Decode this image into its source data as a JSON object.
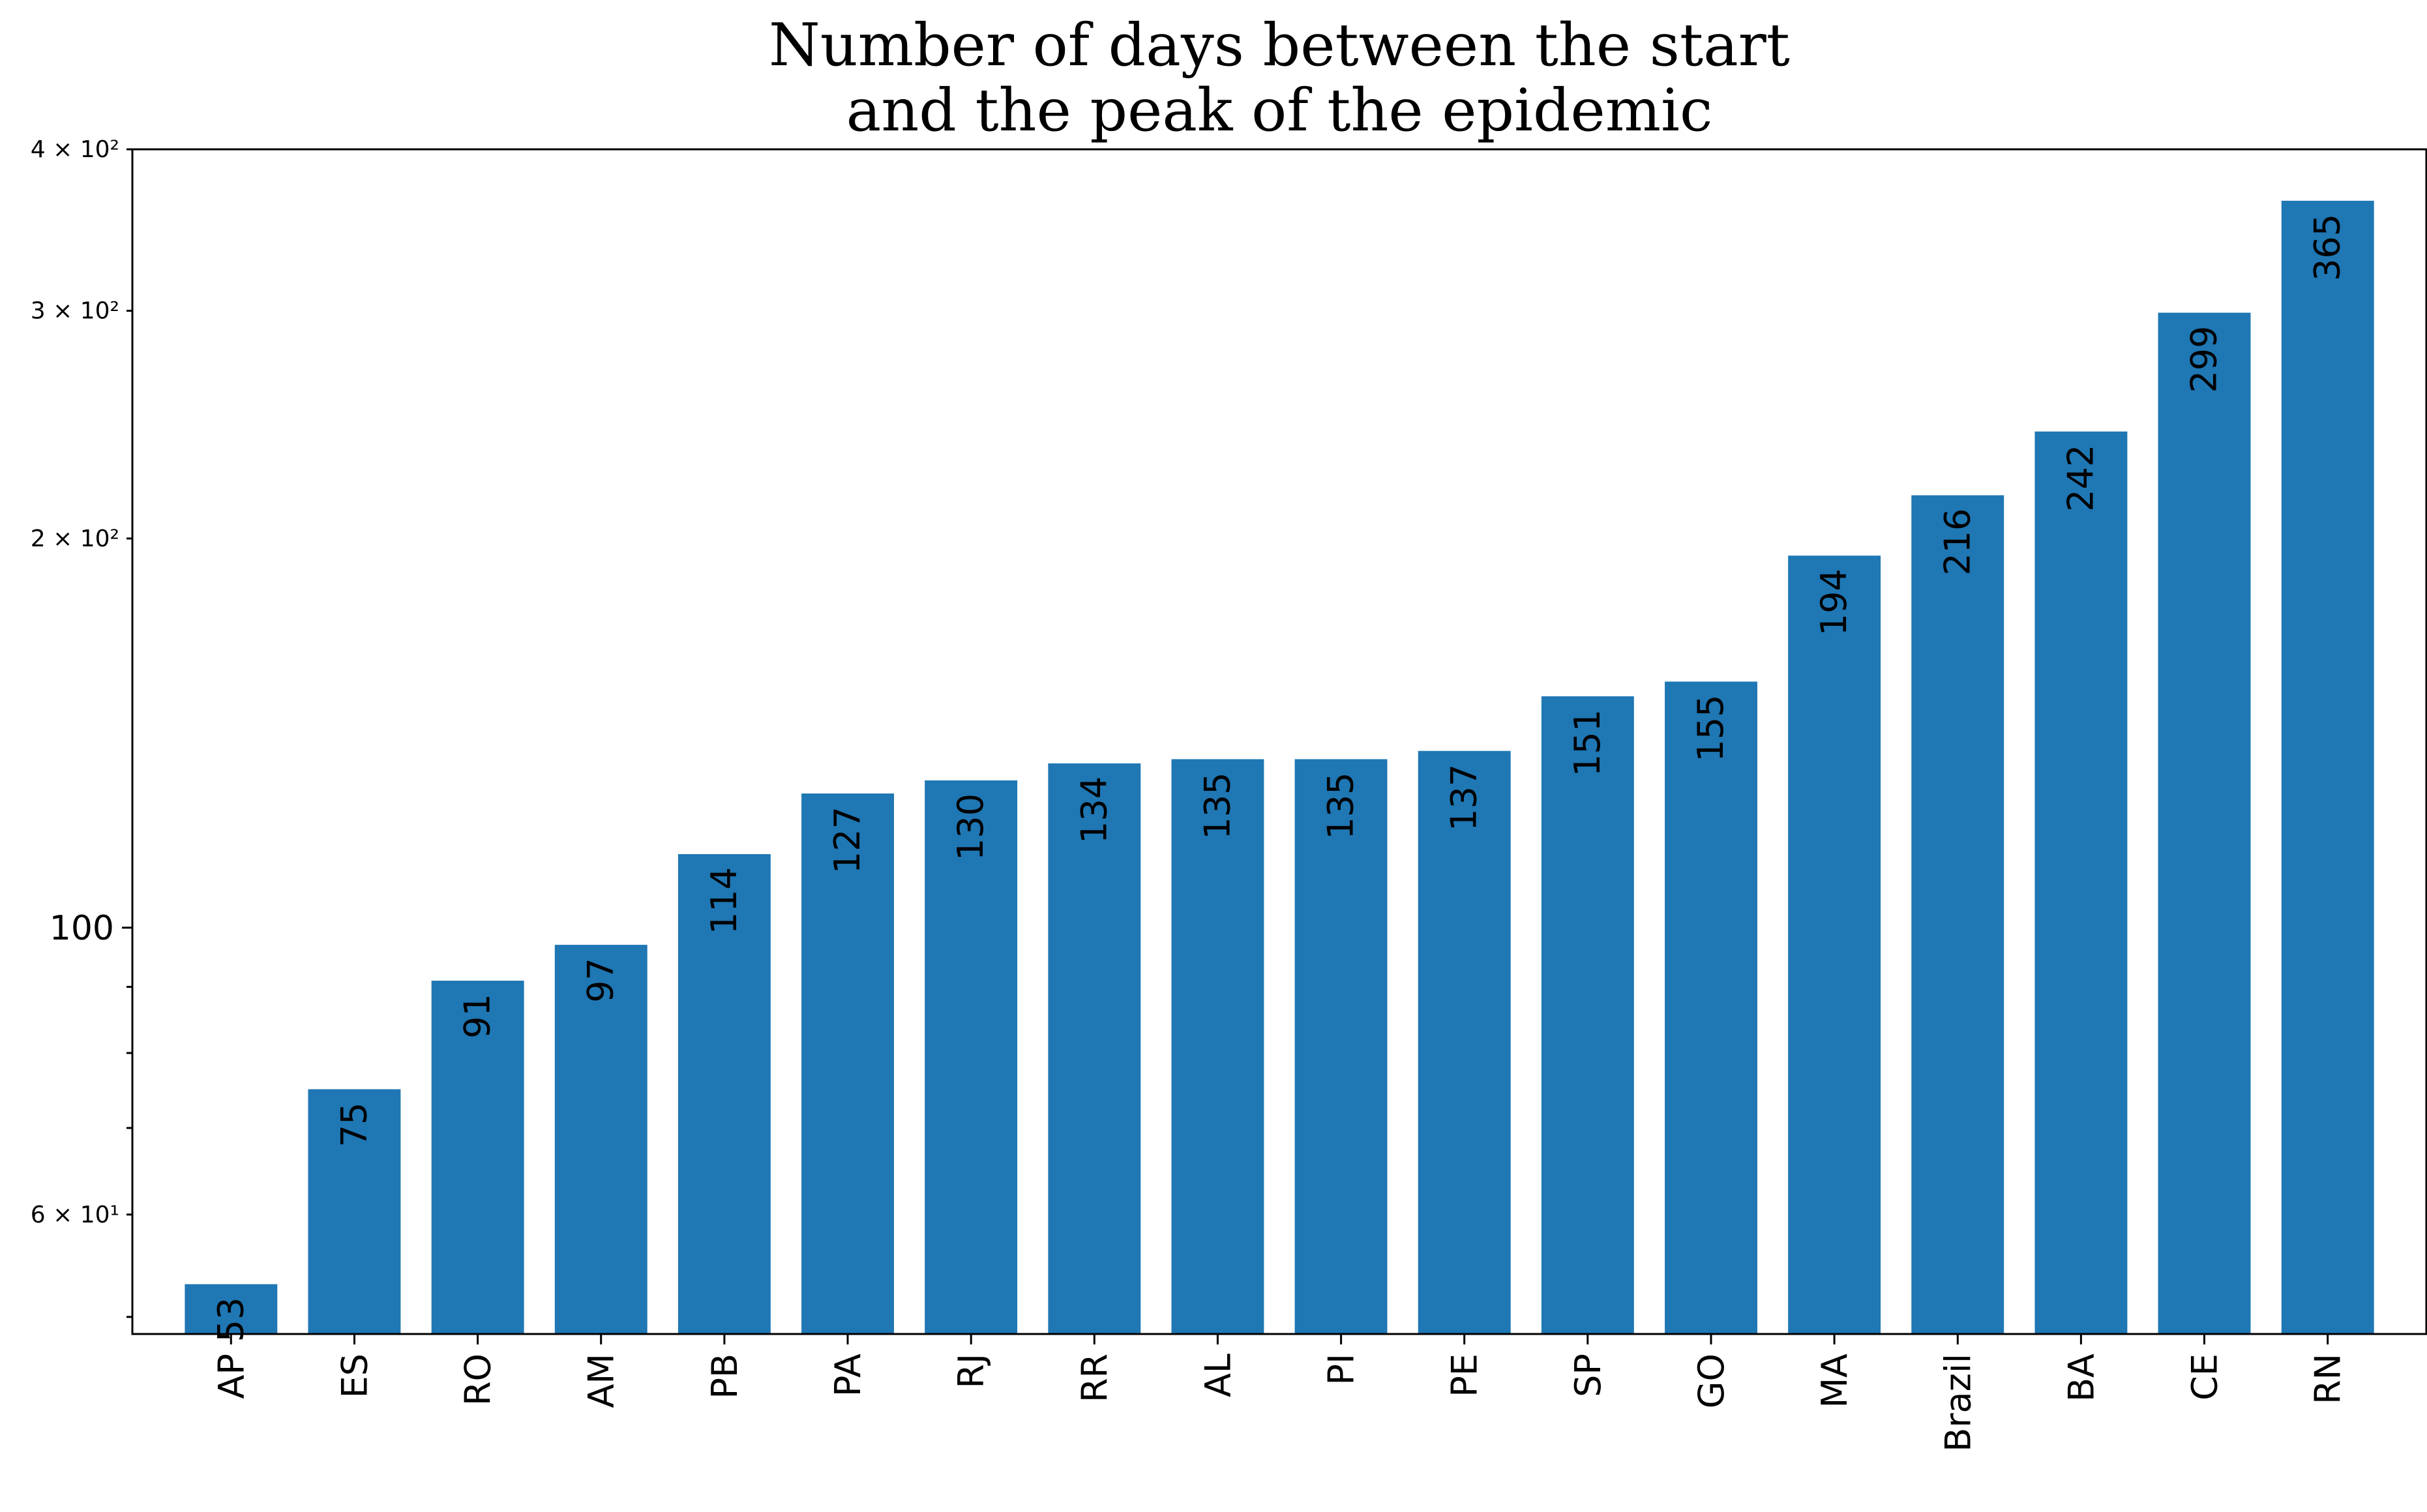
{
  "chart_data": {
    "type": "bar",
    "title_lines": [
      "Number of days between the start",
      "and the peak of the epidemic"
    ],
    "categories": [
      "AP",
      "ES",
      "RO",
      "AM",
      "PB",
      "PA",
      "RJ",
      "RR",
      "AL",
      "PI",
      "PE",
      "SP",
      "GO",
      "MA",
      "Brazil",
      "BA",
      "CE",
      "RN"
    ],
    "values": [
      53,
      75,
      91,
      97,
      114,
      127,
      130,
      134,
      135,
      135,
      137,
      151,
      155,
      194,
      216,
      242,
      299,
      365
    ],
    "data_labels": [
      "53",
      "75",
      "91",
      "97",
      "114",
      "127",
      "130",
      "134",
      "135",
      "135",
      "137",
      "151",
      "155",
      "194",
      "216",
      "242",
      "299",
      "365"
    ],
    "y_scale": "log",
    "ylim": [
      48.5,
      400
    ],
    "y_major_ticks": [
      {
        "value": 100,
        "label": "100"
      }
    ],
    "y_minor_ticks": [
      {
        "value": 60,
        "label": "6 × 10¹"
      },
      {
        "value": 200,
        "label": "2 × 10²"
      },
      {
        "value": 300,
        "label": "3 × 10²"
      },
      {
        "value": 400,
        "label": "4 × 10²"
      }
    ],
    "y_unlabeled_ticks": [
      50,
      70,
      80,
      90
    ],
    "bar_color": "#1f77b4",
    "grid": false,
    "legend": "none",
    "xlabel": "",
    "ylabel": ""
  }
}
